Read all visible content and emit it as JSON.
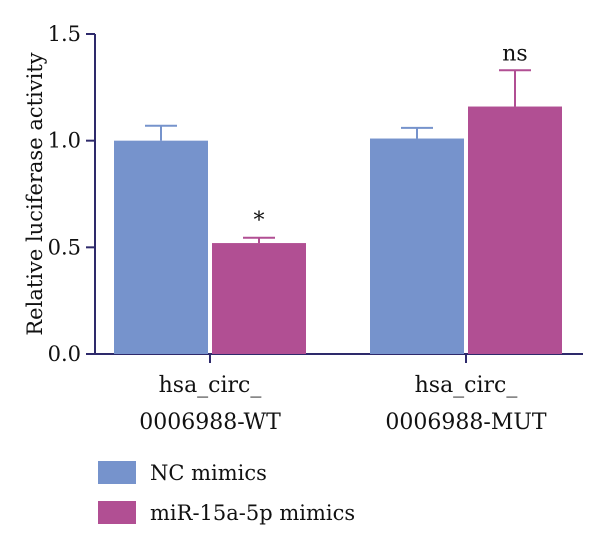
{
  "chart_data": {
    "type": "bar",
    "categories": [
      "hsa_circ_\n0006988-WT",
      "hsa_circ_\n0006988-MUT"
    ],
    "series": [
      {
        "name": "NC mimics",
        "color": "#7693cc",
        "values": [
          1.0,
          1.01
        ],
        "errors": [
          0.07,
          0.05
        ]
      },
      {
        "name": "miR-15a-5p mimics",
        "color": "#b14f93",
        "values": [
          0.52,
          1.16
        ],
        "errors": [
          0.025,
          0.17
        ]
      }
    ],
    "annotations": [
      {
        "category_index": 0,
        "series_index": 1,
        "text": "*"
      },
      {
        "category_index": 1,
        "series_index": 1,
        "text": "ns"
      }
    ],
    "ylabel": "Relative luciferase activity",
    "xlabel": "",
    "ylim": [
      0.0,
      1.5
    ],
    "yticks": [
      "0.0",
      "0.5",
      "1.0",
      "1.5"
    ],
    "grid": false,
    "legend_position": "bottom-left",
    "axis_color": "#2e2a6b"
  }
}
